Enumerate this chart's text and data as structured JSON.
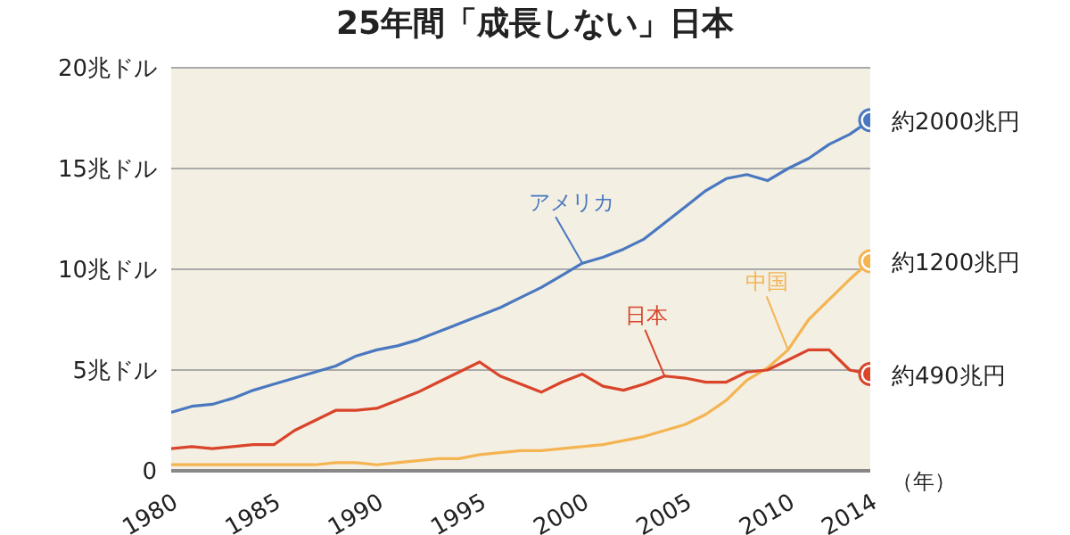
{
  "chart_data": {
    "type": "line",
    "title": "25年間「成長しない」日本",
    "xlabel": "（年）",
    "x": [
      1980,
      1981,
      1982,
      1983,
      1984,
      1985,
      1986,
      1987,
      1988,
      1989,
      1990,
      1991,
      1992,
      1993,
      1994,
      1995,
      1996,
      1997,
      1998,
      1999,
      2000,
      2001,
      2002,
      2003,
      2004,
      2005,
      2006,
      2007,
      2008,
      2009,
      2010,
      2011,
      2012,
      2013,
      2014
    ],
    "xlim": [
      1980,
      2014
    ],
    "xticks": [
      1980,
      1985,
      1990,
      1995,
      2000,
      2005,
      2010,
      2014
    ],
    "ylim": [
      0,
      20
    ],
    "yticks": [
      0,
      {
        "value": 5,
        "label": "5兆ドル"
      },
      {
        "value": 10,
        "label": "10兆ドル"
      },
      {
        "value": 15,
        "label": "15兆ドル"
      },
      {
        "value": 20,
        "label": "20兆ドル"
      }
    ],
    "grid": "y",
    "line_style": "solid",
    "series": [
      {
        "name": "アメリカ",
        "color": "#4a78c0",
        "values": [
          2.9,
          3.2,
          3.3,
          3.6,
          4.0,
          4.3,
          4.6,
          4.9,
          5.2,
          5.7,
          6.0,
          6.2,
          6.5,
          6.9,
          7.3,
          7.7,
          8.1,
          8.6,
          9.1,
          9.7,
          10.3,
          10.6,
          11.0,
          11.5,
          12.3,
          13.1,
          13.9,
          14.5,
          14.7,
          14.4,
          15.0,
          15.5,
          16.2,
          16.7,
          17.4
        ],
        "value_labels": [
          null,
          null,
          null,
          null,
          null,
          null,
          null,
          null,
          null,
          null,
          null,
          null,
          null,
          null,
          null,
          null,
          null,
          null,
          null,
          null,
          null,
          null,
          null,
          null,
          null,
          null,
          null,
          null,
          null,
          null,
          null,
          null,
          null,
          null,
          "約2000兆円"
        ]
      },
      {
        "name": "中国",
        "color": "#f5b452",
        "values": [
          0.3,
          0.3,
          0.3,
          0.3,
          0.3,
          0.3,
          0.3,
          0.3,
          0.4,
          0.4,
          0.3,
          0.4,
          0.5,
          0.6,
          0.6,
          0.8,
          0.9,
          1.0,
          1.0,
          1.1,
          1.2,
          1.3,
          1.5,
          1.7,
          2.0,
          2.3,
          2.8,
          3.5,
          4.5,
          5.1,
          6.0,
          7.5,
          8.5,
          9.5,
          10.4
        ],
        "value_labels": [
          null,
          null,
          null,
          null,
          null,
          null,
          null,
          null,
          null,
          null,
          null,
          null,
          null,
          null,
          null,
          null,
          null,
          null,
          null,
          null,
          null,
          null,
          null,
          null,
          null,
          null,
          null,
          null,
          null,
          null,
          null,
          null,
          null,
          null,
          "約1200兆円"
        ]
      },
      {
        "name": "日本",
        "color": "#d9442a",
        "values": [
          1.1,
          1.2,
          1.1,
          1.2,
          1.3,
          1.3,
          2.0,
          2.5,
          3.0,
          3.0,
          3.1,
          3.5,
          3.9,
          4.4,
          4.9,
          5.4,
          4.7,
          4.3,
          3.9,
          4.4,
          4.8,
          4.2,
          4.0,
          4.3,
          4.7,
          4.6,
          4.4,
          4.4,
          4.9,
          5.0,
          5.5,
          6.0,
          6.0,
          5.0,
          4.8
        ],
        "value_labels": [
          null,
          null,
          null,
          null,
          null,
          null,
          null,
          null,
          null,
          null,
          null,
          null,
          null,
          null,
          null,
          null,
          null,
          null,
          null,
          null,
          null,
          null,
          null,
          null,
          null,
          null,
          null,
          null,
          null,
          null,
          null,
          null,
          null,
          null,
          "約490兆円"
        ]
      }
    ]
  }
}
